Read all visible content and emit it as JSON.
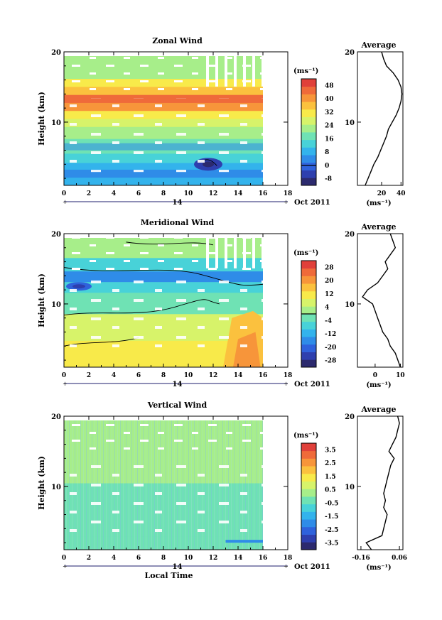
{
  "figure": {
    "date_label": "Oct 2011",
    "day_label": "14",
    "xlabel": "Local Time",
    "average_title": "Average",
    "unit_label": "(ms⁻¹)"
  },
  "colors": {
    "palette": [
      "#2c2a6e",
      "#2e3fae",
      "#2f62dc",
      "#2f8ce8",
      "#33b3ec",
      "#48d2d8",
      "#6fe2b4",
      "#a7ee8a",
      "#d7f36a",
      "#f8ea4a",
      "#fbc13e",
      "#f7953a",
      "#ef6a3a",
      "#e0403a"
    ]
  },
  "chart_data": [
    {
      "type": "heatmap",
      "title": "Zonal Wind",
      "xlabel": "",
      "ylabel": "Height (km)",
      "x_ticks": [
        0,
        2,
        4,
        6,
        8,
        10,
        12,
        14,
        16,
        18
      ],
      "y_ticks": [
        10,
        20
      ],
      "xlim": [
        0,
        18
      ],
      "ylim": [
        1,
        20
      ],
      "data_x_end": 16,
      "colorbar_unit": "(ms⁻¹)",
      "colorbar_labels": [
        "48",
        "40",
        "32",
        "24",
        "16",
        "8",
        "0",
        "-8"
      ],
      "colorbar_range": [
        -12,
        52
      ],
      "colorbar_mark_value": 0,
      "profile_heights_km": [
        1,
        2,
        3,
        4,
        5,
        6,
        7,
        8,
        9,
        10,
        11,
        12,
        13,
        14,
        15,
        16,
        17,
        18,
        19,
        20
      ],
      "average_profile": [
        3,
        6,
        9,
        12,
        16,
        19,
        22,
        25,
        27,
        31,
        35,
        38,
        40,
        41,
        40,
        37,
        32,
        25,
        22,
        20
      ],
      "average_xticks": [
        20,
        40
      ],
      "average_xlim": [
        -5,
        42
      ],
      "average_unit": "(ms⁻¹)"
    },
    {
      "type": "heatmap",
      "title": "Meridional Wind",
      "xlabel": "",
      "ylabel": "Height (km)",
      "x_ticks": [
        0,
        2,
        4,
        6,
        8,
        10,
        12,
        14,
        16,
        18
      ],
      "y_ticks": [
        10,
        20
      ],
      "xlim": [
        0,
        18
      ],
      "ylim": [
        1,
        20
      ],
      "data_x_end": 16,
      "colorbar_unit": "(ms⁻¹)",
      "colorbar_labels": [
        "28",
        "20",
        "12",
        "4",
        "-4",
        "-12",
        "-20",
        "-28"
      ],
      "colorbar_range": [
        -32,
        32
      ],
      "colorbar_mark_value": 0,
      "profile_heights_km": [
        1,
        2,
        3,
        4,
        5,
        6,
        7,
        8,
        9,
        10,
        11,
        12,
        13,
        14,
        15,
        16,
        17,
        18,
        19,
        20
      ],
      "average_profile": [
        10,
        9,
        8,
        6,
        5,
        3,
        2,
        1,
        0,
        -1,
        -5,
        -3,
        1,
        3,
        5,
        4,
        6,
        8,
        7,
        6
      ],
      "average_xticks": [
        0,
        10
      ],
      "average_xlim": [
        -7,
        11
      ],
      "average_unit": "(ms⁻¹)"
    },
    {
      "type": "heatmap",
      "title": "Vertical Wind",
      "xlabel": "Local Time",
      "ylabel": "Height (km)",
      "x_ticks": [
        0,
        2,
        4,
        6,
        8,
        10,
        12,
        14,
        16,
        18
      ],
      "y_ticks": [
        10,
        20
      ],
      "xlim": [
        0,
        18
      ],
      "ylim": [
        1,
        20
      ],
      "data_x_end": 16,
      "colorbar_unit": "(ms⁻¹)",
      "colorbar_labels": [
        "3.5",
        "2.5",
        "1.5",
        "0.5",
        "-0.5",
        "-1.5",
        "-2.5",
        "-3.5"
      ],
      "colorbar_range": [
        -4,
        4
      ],
      "colorbar_mark_value": null,
      "profile_heights_km": [
        1,
        2,
        3,
        4,
        5,
        6,
        7,
        8,
        9,
        10,
        11,
        12,
        13,
        14,
        15,
        16,
        17,
        18,
        19,
        20
      ],
      "average_profile": [
        -0.1,
        -0.13,
        -0.04,
        -0.03,
        -0.02,
        -0.01,
        -0.03,
        -0.02,
        -0.03,
        -0.02,
        -0.01,
        0.0,
        0.01,
        0.03,
        0.0,
        0.02,
        0.04,
        0.05,
        0.06,
        0.05
      ],
      "average_xticks": [
        -0.16,
        0.06
      ],
      "average_xlim": [
        -0.18,
        0.08
      ],
      "average_unit": "(ms⁻¹)"
    }
  ]
}
